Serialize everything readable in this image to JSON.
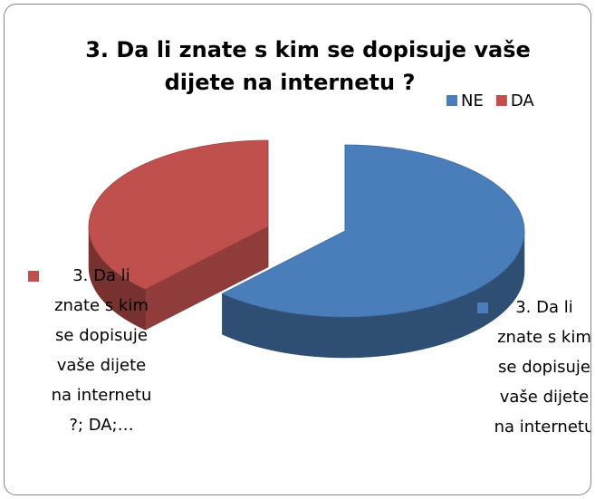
{
  "chart_data": {
    "type": "pie",
    "title": [
      "3. Da li znate s kim se dopisuje vaše",
      "dijete na internetu ?"
    ],
    "categories": [
      "NE",
      "DA"
    ],
    "values": [
      62,
      38
    ],
    "colors": [
      "#4a7ebb",
      "#c0504d"
    ],
    "data_labels": [
      "3. Da li znate s kim se dopisuje vaše dijete na internetu",
      "3. Da li znate s kim se dopisuje vaše dijete na internetu ?; DA;…"
    ],
    "legend": "top-right"
  }
}
